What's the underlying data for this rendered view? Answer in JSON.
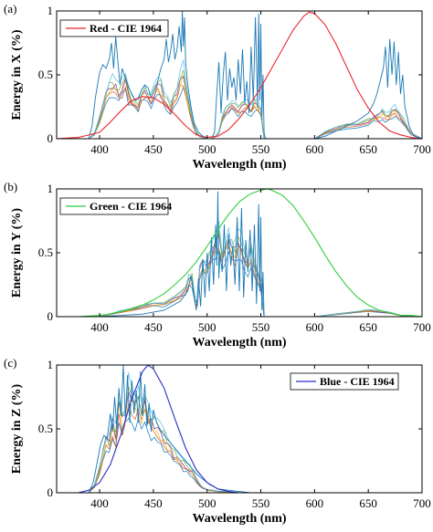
{
  "chart_data": [
    {
      "type": "line",
      "panel_label": "(a)",
      "xlabel": "Wavelength (nm)",
      "ylabel": "Energy in X (%)",
      "xlim": [
        360,
        700
      ],
      "ylim": [
        0,
        1
      ],
      "xticks": [
        "400",
        "450",
        "500",
        "550",
        "600",
        "650",
        "700"
      ],
      "yticks": [
        "0",
        "0.5",
        "1"
      ],
      "legend_position": "top-left",
      "grid": false,
      "reference_curve": {
        "name": "Red - CIE 1964",
        "color": "#e8262b",
        "x": [
          360,
          380,
          400,
          410,
          420,
          430,
          440,
          450,
          460,
          470,
          480,
          490,
          500,
          510,
          520,
          530,
          540,
          550,
          560,
          570,
          580,
          590,
          595,
          600,
          610,
          620,
          630,
          640,
          650,
          660,
          670,
          680,
          690,
          700
        ],
        "y": [
          0.0,
          0.01,
          0.05,
          0.13,
          0.22,
          0.3,
          0.33,
          0.32,
          0.27,
          0.19,
          0.1,
          0.03,
          0.01,
          0.02,
          0.07,
          0.16,
          0.27,
          0.4,
          0.55,
          0.7,
          0.85,
          0.96,
          0.99,
          0.98,
          0.89,
          0.74,
          0.56,
          0.38,
          0.24,
          0.13,
          0.06,
          0.03,
          0.01,
          0.0
        ]
      },
      "measured_series_colors": [
        "#0072bd",
        "#d95319",
        "#edb120",
        "#7e2f8e",
        "#77ac30",
        "#4dbeee"
      ],
      "measured_spectra": {
        "x": [
          360,
          390,
          395,
          400,
          403,
          406,
          409,
          412,
          415,
          418,
          421,
          424,
          427,
          430,
          433,
          436,
          439,
          442,
          445,
          448,
          451,
          454,
          457,
          460,
          463,
          466,
          469,
          472,
          475,
          478,
          481,
          484,
          487,
          490,
          493,
          496,
          499,
          502,
          505,
          508,
          511,
          514,
          517,
          520,
          523,
          526,
          529,
          532,
          535,
          538,
          541,
          544,
          547,
          550,
          553,
          560,
          600,
          610,
          620,
          630,
          640,
          650,
          655,
          660,
          663,
          666,
          669,
          672,
          675,
          678,
          681,
          684,
          687,
          690,
          700
        ],
        "y": [
          0.0,
          0.0,
          0.04,
          0.15,
          0.26,
          0.34,
          0.38,
          0.42,
          0.4,
          0.36,
          0.4,
          0.45,
          0.34,
          0.3,
          0.28,
          0.26,
          0.34,
          0.38,
          0.34,
          0.3,
          0.36,
          0.42,
          0.4,
          0.32,
          0.28,
          0.24,
          0.3,
          0.38,
          0.44,
          0.5,
          0.35,
          0.22,
          0.12,
          0.05,
          0.02,
          0.01,
          0.0,
          0.0,
          0.0,
          0.02,
          0.05,
          0.15,
          0.22,
          0.26,
          0.28,
          0.24,
          0.22,
          0.26,
          0.28,
          0.25,
          0.22,
          0.28,
          0.26,
          0.22,
          0.0,
          0.0,
          0.0,
          0.05,
          0.08,
          0.1,
          0.11,
          0.14,
          0.16,
          0.18,
          0.2,
          0.17,
          0.18,
          0.2,
          0.22,
          0.19,
          0.16,
          0.12,
          0.08,
          0.04,
          0.0
        ]
      },
      "peak_spectrum": {
        "color": "#1a78b4",
        "x": [
          360,
          390,
          393,
          396,
          400,
          403,
          406,
          409,
          411,
          413,
          415,
          417,
          419,
          421,
          423,
          425,
          427,
          430,
          433,
          436,
          439,
          442,
          445,
          448,
          451,
          454,
          457,
          460,
          462,
          464,
          466,
          468,
          470,
          472,
          474,
          476,
          477,
          478,
          479,
          480,
          482,
          485,
          488,
          492,
          496,
          500,
          504,
          507,
          509,
          511,
          513,
          515,
          517,
          519,
          521,
          523,
          525,
          527,
          529,
          531,
          533,
          535,
          537,
          539,
          541,
          543,
          545,
          547,
          548,
          549,
          550,
          551,
          552,
          553,
          554,
          555,
          600,
          610,
          620,
          630,
          640,
          650,
          655,
          658,
          661,
          664,
          666,
          668,
          670,
          672,
          674,
          676,
          678,
          680,
          682,
          684,
          686,
          688,
          690,
          693,
          700
        ],
        "y": [
          0.0,
          0.0,
          0.1,
          0.32,
          0.52,
          0.58,
          0.55,
          0.62,
          0.75,
          0.55,
          0.8,
          0.6,
          0.42,
          0.55,
          0.5,
          0.45,
          0.4,
          0.35,
          0.3,
          0.32,
          0.38,
          0.42,
          0.4,
          0.32,
          0.38,
          0.45,
          0.55,
          0.62,
          0.78,
          0.6,
          0.68,
          0.82,
          0.62,
          0.7,
          0.88,
          0.68,
          1.0,
          0.72,
          0.95,
          0.6,
          0.42,
          0.25,
          0.12,
          0.05,
          0.02,
          0.0,
          0.0,
          0.05,
          0.35,
          0.6,
          0.2,
          0.5,
          0.68,
          0.3,
          0.55,
          0.4,
          0.48,
          0.3,
          0.62,
          0.35,
          0.7,
          0.28,
          0.45,
          0.2,
          0.72,
          0.3,
          0.95,
          0.25,
          0.98,
          0.3,
          0.9,
          0.15,
          0.5,
          0.05,
          0.01,
          0.0,
          0.0,
          0.02,
          0.06,
          0.1,
          0.14,
          0.2,
          0.28,
          0.35,
          0.45,
          0.55,
          0.72,
          0.4,
          0.78,
          0.5,
          0.76,
          0.42,
          0.68,
          0.35,
          0.5,
          0.25,
          0.18,
          0.1,
          0.06,
          0.02,
          0.0
        ]
      }
    },
    {
      "type": "line",
      "panel_label": "(b)",
      "xlabel": "Wavelength (nm)",
      "ylabel": "Energy in Y (%)",
      "xlim": [
        360,
        700
      ],
      "ylim": [
        0,
        1
      ],
      "xticks": [
        "400",
        "450",
        "500",
        "550",
        "600",
        "650",
        "700"
      ],
      "yticks": [
        "0",
        "0.5",
        "1"
      ],
      "legend_position": "top-left",
      "grid": false,
      "reference_curve": {
        "name": "Green - CIE 1964",
        "color": "#2fcf3a",
        "x": [
          360,
          380,
          400,
          410,
          420,
          430,
          440,
          450,
          460,
          470,
          480,
          490,
          500,
          510,
          520,
          530,
          540,
          550,
          556,
          560,
          570,
          580,
          590,
          600,
          610,
          620,
          630,
          640,
          650,
          660,
          670,
          680,
          690,
          700
        ],
        "y": [
          0.0,
          0.0,
          0.01,
          0.02,
          0.04,
          0.06,
          0.09,
          0.13,
          0.18,
          0.25,
          0.33,
          0.43,
          0.55,
          0.68,
          0.8,
          0.9,
          0.96,
          0.99,
          1.0,
          0.99,
          0.95,
          0.87,
          0.75,
          0.62,
          0.48,
          0.35,
          0.24,
          0.15,
          0.09,
          0.05,
          0.03,
          0.01,
          0.01,
          0.0
        ]
      },
      "measured_series_colors": [
        "#0072bd",
        "#d95319",
        "#edb120",
        "#7e2f8e",
        "#77ac30",
        "#4dbeee"
      ],
      "measured_spectra": {
        "x": [
          360,
          400,
          410,
          420,
          430,
          440,
          450,
          460,
          470,
          475,
          480,
          483,
          486,
          489,
          491,
          493,
          496,
          499,
          502,
          505,
          508,
          511,
          514,
          517,
          520,
          523,
          526,
          529,
          532,
          535,
          538,
          541,
          544,
          547,
          550,
          553,
          560,
          600,
          620,
          640,
          650,
          660,
          670,
          680,
          700
        ],
        "y": [
          0.0,
          0.0,
          0.02,
          0.04,
          0.06,
          0.08,
          0.1,
          0.1,
          0.14,
          0.18,
          0.22,
          0.28,
          0.3,
          0.12,
          0.1,
          0.35,
          0.42,
          0.38,
          0.45,
          0.5,
          0.58,
          0.62,
          0.48,
          0.55,
          0.6,
          0.52,
          0.5,
          0.58,
          0.56,
          0.45,
          0.42,
          0.5,
          0.38,
          0.32,
          0.25,
          0.0,
          0.0,
          0.0,
          0.02,
          0.04,
          0.05,
          0.04,
          0.03,
          0.01,
          0.0
        ]
      },
      "peak_spectrum": {
        "color": "#1a78b4",
        "x": [
          360,
          400,
          440,
          460,
          475,
          482,
          485,
          488,
          490,
          492,
          494,
          496,
          498,
          500,
          502,
          504,
          506,
          508,
          509,
          510,
          511,
          512,
          514,
          516,
          518,
          520,
          522,
          524,
          526,
          528,
          530,
          532,
          534,
          536,
          538,
          540,
          542,
          544,
          546,
          548,
          549,
          550,
          551,
          552,
          553,
          560,
          700
        ],
        "y": [
          0.0,
          0.0,
          0.02,
          0.05,
          0.12,
          0.2,
          0.32,
          0.15,
          0.05,
          0.3,
          0.08,
          0.45,
          0.15,
          0.5,
          0.2,
          0.62,
          0.25,
          0.72,
          0.4,
          0.98,
          0.3,
          0.5,
          0.35,
          0.72,
          0.2,
          0.65,
          0.4,
          0.55,
          0.25,
          0.78,
          0.2,
          0.85,
          0.15,
          0.6,
          0.35,
          0.68,
          0.2,
          0.72,
          0.1,
          0.88,
          0.2,
          0.78,
          0.05,
          0.35,
          0.0,
          0.0,
          0.0
        ]
      }
    },
    {
      "type": "line",
      "panel_label": "(c)",
      "xlabel": "Wavelength (nm)",
      "ylabel": "Energy in Z (%)",
      "xlim": [
        360,
        700
      ],
      "ylim": [
        0,
        1
      ],
      "xticks": [
        "400",
        "450",
        "500",
        "550",
        "600",
        "650",
        "700"
      ],
      "yticks": [
        "0",
        "0.5",
        "1"
      ],
      "legend_position": "top-right",
      "grid": false,
      "reference_curve": {
        "name": "Blue - CIE 1964",
        "color": "#2a2fc4",
        "x": [
          360,
          380,
          390,
          400,
          410,
          420,
          430,
          440,
          445,
          450,
          460,
          470,
          480,
          490,
          500,
          510,
          520,
          530,
          540,
          550,
          560,
          580,
          600,
          700
        ],
        "y": [
          0.0,
          0.0,
          0.02,
          0.08,
          0.22,
          0.46,
          0.74,
          0.95,
          1.0,
          0.97,
          0.82,
          0.58,
          0.35,
          0.18,
          0.08,
          0.03,
          0.01,
          0.0,
          0.0,
          0.0,
          0.0,
          0.0,
          0.0,
          0.0
        ]
      },
      "measured_series_colors": [
        "#0072bd",
        "#d95319",
        "#edb120",
        "#7e2f8e",
        "#77ac30",
        "#4dbeee"
      ],
      "measured_spectra": {
        "x": [
          360,
          390,
          395,
          400,
          403,
          406,
          409,
          412,
          415,
          418,
          421,
          424,
          427,
          430,
          433,
          436,
          439,
          442,
          445,
          448,
          451,
          454,
          457,
          460,
          463,
          466,
          469,
          472,
          475,
          478,
          481,
          484,
          487,
          490,
          493,
          496,
          499,
          502,
          505,
          510,
          520,
          530,
          540,
          550,
          560,
          700
        ],
        "y": [
          0.0,
          0.0,
          0.05,
          0.18,
          0.3,
          0.4,
          0.38,
          0.55,
          0.45,
          0.7,
          0.55,
          0.62,
          0.78,
          0.72,
          0.65,
          0.68,
          0.62,
          0.72,
          0.6,
          0.55,
          0.52,
          0.48,
          0.45,
          0.42,
          0.38,
          0.35,
          0.3,
          0.28,
          0.25,
          0.22,
          0.2,
          0.18,
          0.15,
          0.1,
          0.06,
          0.04,
          0.03,
          0.02,
          0.02,
          0.01,
          0.01,
          0.0,
          0.0,
          0.0,
          0.0,
          0.0
        ]
      },
      "peak_spectrum": {
        "color": "#1a78b4",
        "x": [
          360,
          390,
          394,
          398,
          401,
          404,
          407,
          410,
          412,
          414,
          416,
          418,
          420,
          422,
          424,
          426,
          428,
          430,
          432,
          434,
          436,
          438,
          440,
          442,
          444,
          446,
          448,
          450,
          453,
          456,
          460,
          465,
          470,
          475,
          480,
          485,
          490,
          494,
          497,
          500,
          503,
          506,
          510,
          520,
          530,
          540,
          550,
          560,
          700
        ],
        "y": [
          0.0,
          0.0,
          0.08,
          0.25,
          0.38,
          0.45,
          0.42,
          0.62,
          0.48,
          0.75,
          0.5,
          0.82,
          0.6,
          1.0,
          0.58,
          0.92,
          0.55,
          0.88,
          0.62,
          0.8,
          0.55,
          0.95,
          0.6,
          0.85,
          0.52,
          0.7,
          0.48,
          0.65,
          0.55,
          0.5,
          0.45,
          0.4,
          0.35,
          0.3,
          0.25,
          0.2,
          0.15,
          0.12,
          0.1,
          0.08,
          0.06,
          0.05,
          0.03,
          0.02,
          0.01,
          0.0,
          0.0,
          0.0,
          0.0
        ]
      }
    }
  ]
}
